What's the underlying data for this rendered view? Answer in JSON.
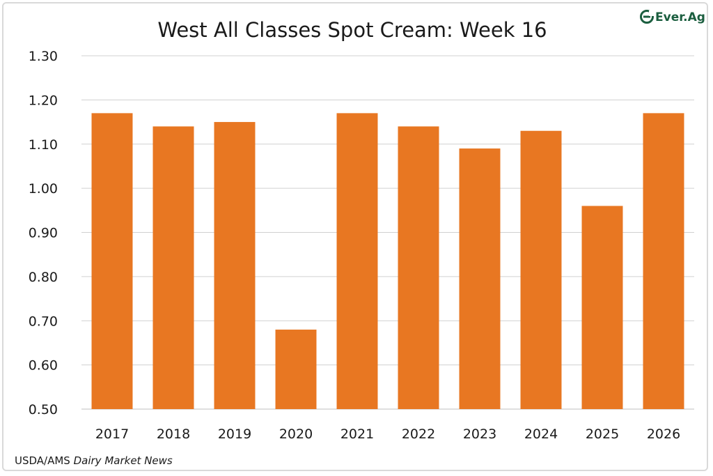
{
  "chart_data": {
    "type": "bar",
    "title": "West All Classes Spot Cream: Week 16",
    "categories": [
      "2017",
      "2018",
      "2019",
      "2020",
      "2021",
      "2022",
      "2023",
      "2024",
      "2025",
      "2026"
    ],
    "values": [
      1.17,
      1.14,
      1.15,
      0.68,
      1.17,
      1.14,
      1.09,
      1.13,
      0.96,
      1.17
    ],
    "xlabel": "",
    "ylabel": "",
    "ylim": [
      0.5,
      1.3
    ],
    "yticks": [
      "0.50",
      "0.60",
      "0.70",
      "0.80",
      "0.90",
      "1.00",
      "1.10",
      "1.20",
      "1.30"
    ],
    "grid": true,
    "bar_color": "#e87722",
    "legend": "none"
  },
  "source": {
    "prefix": "USDA/AMS ",
    "italic": "Dairy Market News"
  },
  "logo": {
    "text": "Ever.Ag",
    "color": "#1b5e3f",
    "icon": "ever-ag-e-icon"
  }
}
